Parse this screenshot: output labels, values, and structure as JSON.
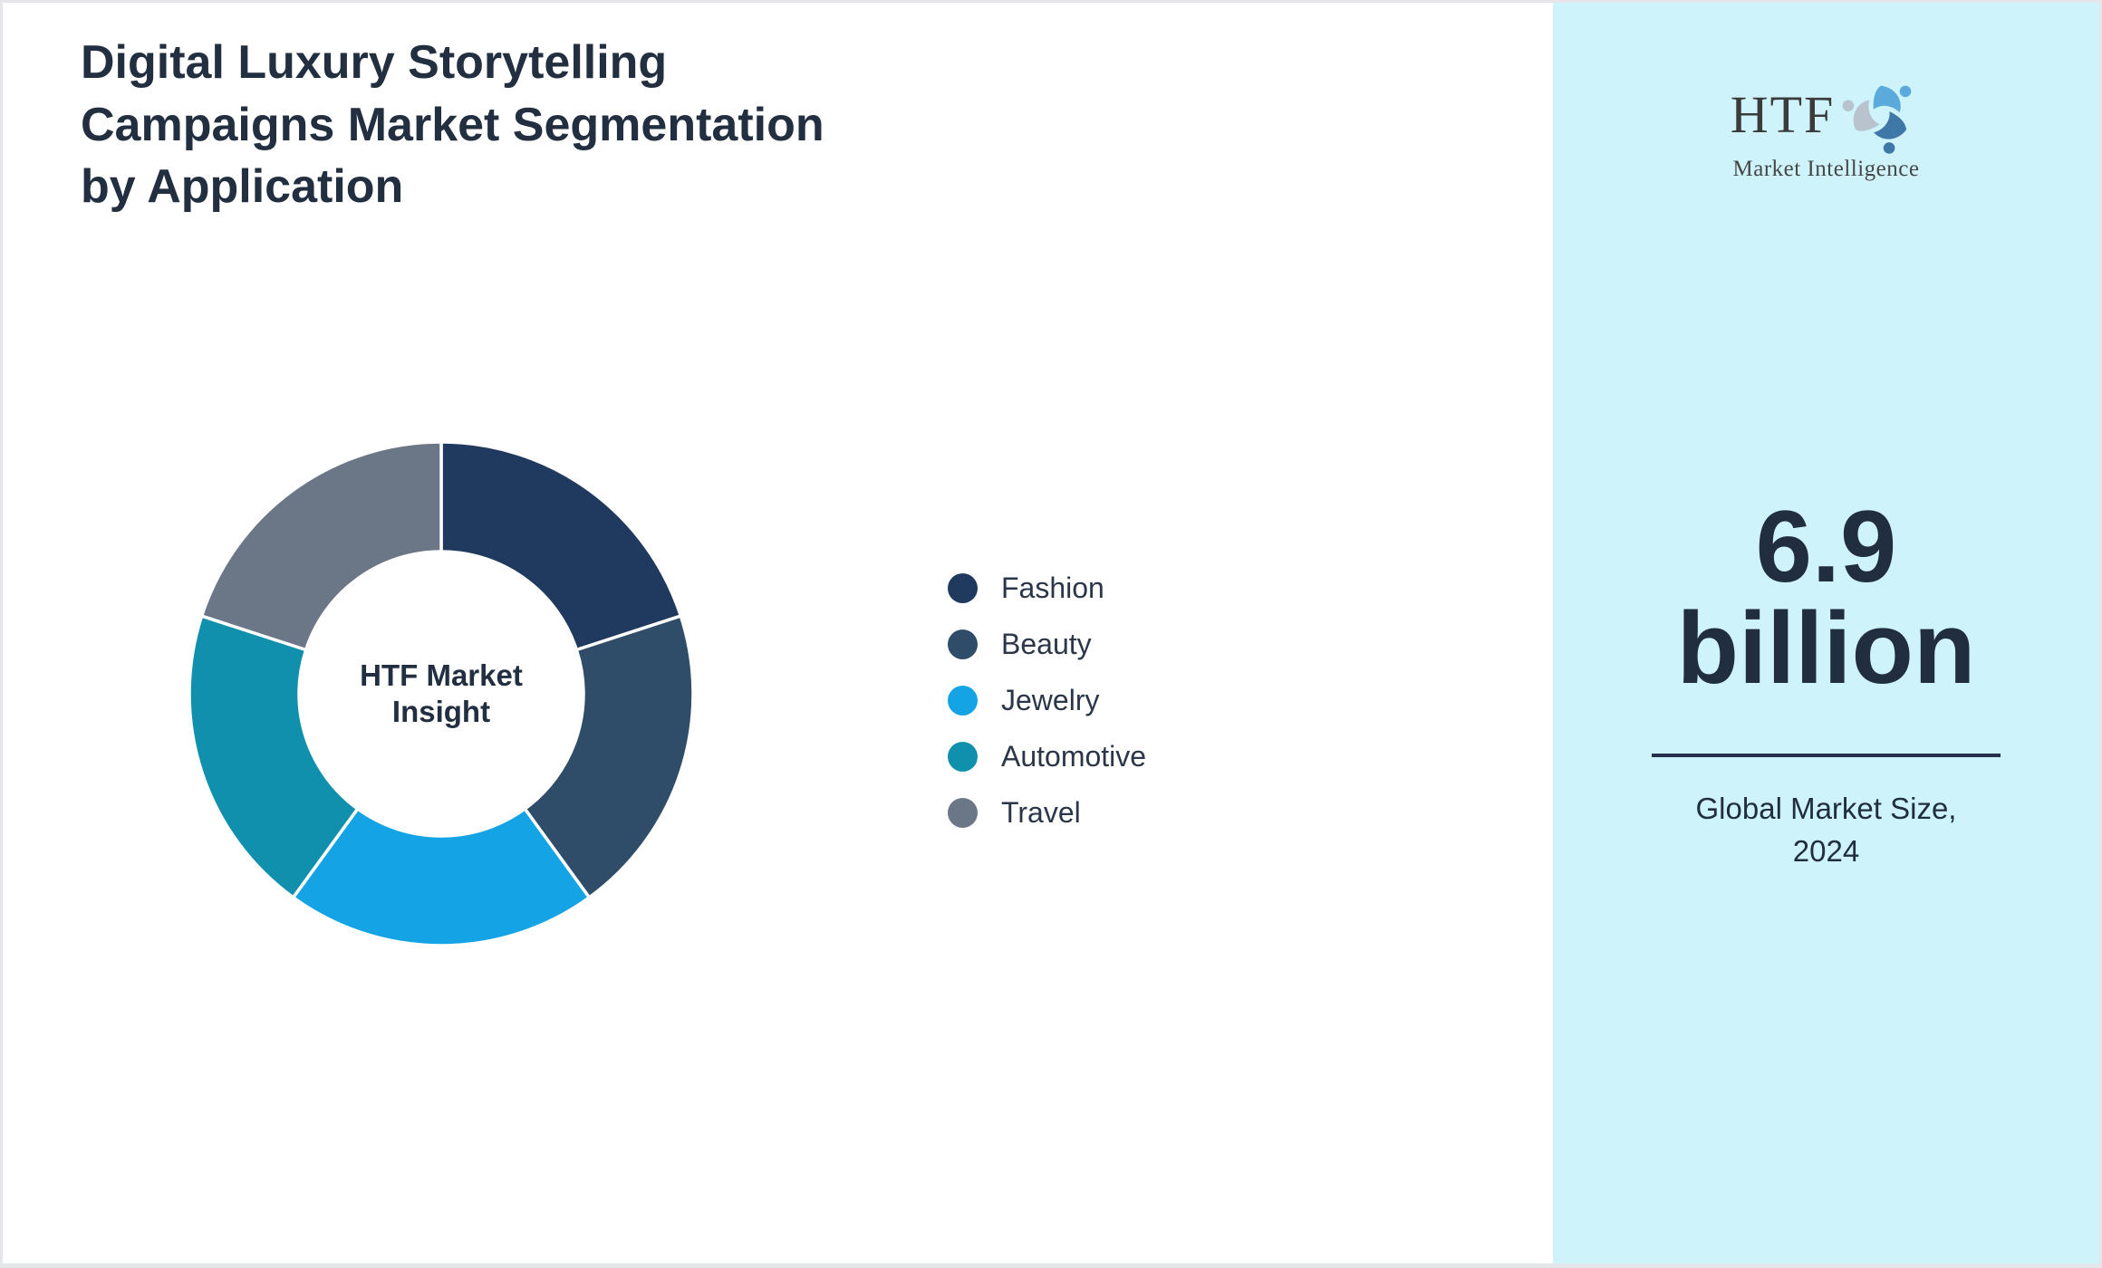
{
  "header": {
    "title": "Digital Luxury Storytelling\nCampaigns Market Segmentation\nby Application"
  },
  "chart_data": {
    "type": "pie",
    "donut": true,
    "title": "Digital Luxury Storytelling Campaigns Market Segmentation by Application",
    "labels": [
      "Fashion",
      "Beauty",
      "Jewelry",
      "Automotive",
      "Travel"
    ],
    "values": [
      20,
      20,
      20,
      20,
      20
    ],
    "unit": "percent",
    "colors": [
      "#1f3a5e",
      "#2f4d68",
      "#14a4e6",
      "#1090ac",
      "#6b7687"
    ],
    "center_label": "HTF Market\nInsight",
    "legend_position": "right",
    "start_angle": "top",
    "direction": "clockwise",
    "segment_gap_color": "#ffffff"
  },
  "legend": {
    "items": [
      "Fashion",
      "Beauty",
      "Jewelry",
      "Automotive",
      "Travel"
    ]
  },
  "sidebar": {
    "background": "#cff3fa",
    "logo": {
      "text": "HTF",
      "subtext": "Market Intelligence",
      "icon_colors": [
        "#5aabdc",
        "#3f78a8",
        "#b8c3ce"
      ]
    },
    "stat_value_line1": "6.9",
    "stat_value_line2": "billion",
    "stat_caption": "Global Market Size,\n2024"
  }
}
